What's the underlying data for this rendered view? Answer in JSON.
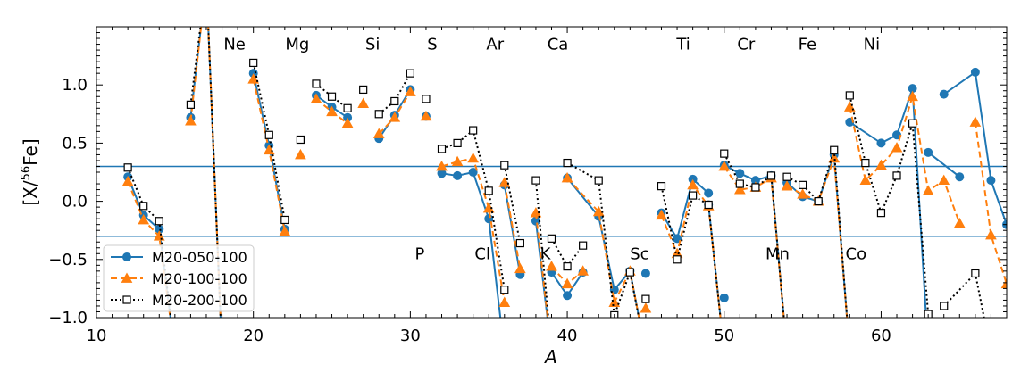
{
  "chart_data": {
    "type": "line",
    "title": "",
    "xlabel": "A",
    "ylabel": "[X/⁵⁶Fe]",
    "ylabel_main": "[X/",
    "ylabel_sup": "56",
    "ylabel_tail": "Fe]",
    "xlim": [
      10,
      68
    ],
    "ylim": [
      -1.0,
      1.5
    ],
    "xticks": [
      10,
      20,
      30,
      40,
      50,
      60
    ],
    "yticks": [
      -1.0,
      -0.5,
      0.0,
      0.5,
      1.0
    ],
    "ytick_labels": [
      "−1.0",
      "−0.5",
      "0.0",
      "0.5",
      "1.0"
    ],
    "hlines": [
      0.3,
      -0.3
    ],
    "hline_color": "#1f77b4",
    "legend_position": "lower-left",
    "element_labels": [
      {
        "text": "Ne",
        "x": 18.8,
        "y": 1.35
      },
      {
        "text": "Mg",
        "x": 22.8,
        "y": 1.35
      },
      {
        "text": "Si",
        "x": 27.6,
        "y": 1.35
      },
      {
        "text": "S",
        "x": 31.4,
        "y": 1.35
      },
      {
        "text": "Ar",
        "x": 35.4,
        "y": 1.35
      },
      {
        "text": "Ca",
        "x": 39.4,
        "y": 1.35
      },
      {
        "text": "Ti",
        "x": 47.4,
        "y": 1.35
      },
      {
        "text": "Cr",
        "x": 51.4,
        "y": 1.35
      },
      {
        "text": "Fe",
        "x": 55.3,
        "y": 1.35
      },
      {
        "text": "Ni",
        "x": 59.4,
        "y": 1.35
      },
      {
        "text": "P",
        "x": 30.6,
        "y": -0.45
      },
      {
        "text": "Cl",
        "x": 34.6,
        "y": -0.45
      },
      {
        "text": "K",
        "x": 38.6,
        "y": -0.45
      },
      {
        "text": "Sc",
        "x": 44.6,
        "y": -0.45
      },
      {
        "text": "Mn",
        "x": 53.4,
        "y": -0.45
      },
      {
        "text": "Co",
        "x": 58.4,
        "y": -0.45
      }
    ],
    "series": [
      {
        "name": "M20-050-100",
        "color": "#1f77b4",
        "marker": "circle",
        "dash": "solid",
        "segments": [
          [
            [
              12,
              0.21
            ],
            [
              13,
              -0.12
            ],
            [
              14,
              -0.24
            ],
            [
              15,
              -1.3
            ]
          ],
          [
            [
              16,
              0.72
            ],
            [
              17,
              1.9
            ],
            [
              18,
              -1.3
            ]
          ],
          [
            [
              20,
              1.1
            ],
            [
              21,
              0.48
            ],
            [
              22,
              -0.24
            ]
          ],
          [
            [
              24,
              0.91
            ],
            [
              25,
              0.81
            ],
            [
              26,
              0.72
            ]
          ],
          [
            [
              28,
              0.54
            ],
            [
              29,
              0.74
            ],
            [
              30,
              0.96
            ]
          ],
          [
            [
              31,
              0.73
            ]
          ],
          [
            [
              32,
              0.24
            ],
            [
              33,
              0.22
            ],
            [
              34,
              0.25
            ],
            [
              35,
              -0.15
            ],
            [
              36,
              -1.3
            ]
          ],
          [
            [
              36,
              0.14
            ],
            [
              37,
              -0.63
            ]
          ],
          [
            [
              38,
              -0.17
            ],
            [
              39,
              -1.3
            ]
          ],
          [
            [
              39,
              -0.61
            ],
            [
              40,
              -0.81
            ],
            [
              41,
              -0.61
            ]
          ],
          [
            [
              40,
              0.2
            ],
            [
              42,
              -0.13
            ],
            [
              43,
              -0.76
            ],
            [
              44,
              -0.6
            ],
            [
              45,
              -1.3
            ]
          ],
          [
            [
              45,
              -0.62
            ]
          ],
          [
            [
              46,
              -0.1
            ],
            [
              47,
              -0.32
            ],
            [
              48,
              0.19
            ],
            [
              49,
              0.07
            ]
          ],
          [
            [
              49,
              -0.03
            ],
            [
              50,
              -1.3
            ]
          ],
          [
            [
              50,
              -0.83
            ]
          ],
          [
            [
              50,
              0.31
            ],
            [
              51,
              0.24
            ],
            [
              52,
              0.18
            ],
            [
              53,
              0.22
            ],
            [
              54,
              -1.3
            ]
          ],
          [
            [
              54,
              0.16
            ],
            [
              55,
              0.04
            ],
            [
              56,
              0.0
            ],
            [
              57,
              0.4
            ],
            [
              58,
              -1.3
            ]
          ],
          [
            [
              58,
              0.68
            ],
            [
              60,
              0.5
            ],
            [
              61,
              0.57
            ],
            [
              62,
              0.97
            ],
            [
              63,
              -1.3
            ]
          ],
          [
            [
              63,
              0.42
            ],
            [
              65,
              0.21
            ]
          ],
          [
            [
              64,
              0.92
            ],
            [
              66,
              1.11
            ],
            [
              67,
              0.18
            ],
            [
              68,
              -0.2
            ]
          ]
        ]
      },
      {
        "name": "M20-100-100",
        "color": "#ff7f0e",
        "marker": "triangle",
        "dash": "dashed",
        "segments": [
          [
            [
              12,
              0.17
            ],
            [
              13,
              -0.16
            ],
            [
              14,
              -0.3
            ],
            [
              15,
              -1.3
            ]
          ],
          [
            [
              16,
              0.69
            ],
            [
              17,
              1.9
            ],
            [
              18,
              -1.3
            ]
          ],
          [
            [
              20,
              1.05
            ],
            [
              21,
              0.44
            ],
            [
              22,
              -0.26
            ]
          ],
          [
            [
              23,
              0.4
            ]
          ],
          [
            [
              24,
              0.88
            ],
            [
              25,
              0.77
            ],
            [
              26,
              0.67
            ]
          ],
          [
            [
              27,
              0.84
            ]
          ],
          [
            [
              28,
              0.58
            ],
            [
              29,
              0.72
            ],
            [
              30,
              0.94
            ]
          ],
          [
            [
              31,
              0.73
            ]
          ],
          [
            [
              32,
              0.3
            ],
            [
              33,
              0.34
            ],
            [
              34,
              0.37
            ],
            [
              35,
              -0.06
            ],
            [
              36,
              -0.87
            ]
          ],
          [
            [
              36,
              0.16
            ],
            [
              37,
              -0.58
            ]
          ],
          [
            [
              38,
              -0.1
            ],
            [
              39,
              -1.3
            ]
          ],
          [
            [
              39,
              -0.56
            ],
            [
              40,
              -0.71
            ],
            [
              41,
              -0.6
            ]
          ],
          [
            [
              40,
              0.2
            ],
            [
              42,
              -0.09
            ],
            [
              43,
              -0.87
            ],
            [
              44,
              -0.6
            ],
            [
              45,
              -1.3
            ]
          ],
          [
            [
              45,
              -0.92
            ]
          ],
          [
            [
              46,
              -0.12
            ],
            [
              47,
              -0.45
            ],
            [
              48,
              0.14
            ],
            [
              49,
              -0.04
            ],
            [
              50,
              -1.3
            ]
          ],
          [
            [
              50,
              0.3
            ],
            [
              51,
              0.1
            ],
            [
              52,
              0.12
            ],
            [
              53,
              0.2
            ],
            [
              54,
              -1.3
            ]
          ],
          [
            [
              54,
              0.13
            ],
            [
              55,
              0.06
            ],
            [
              56,
              0.0
            ],
            [
              57,
              0.37
            ],
            [
              58,
              -1.3
            ]
          ],
          [
            [
              58,
              0.81
            ],
            [
              59,
              0.18
            ],
            [
              60,
              0.31
            ],
            [
              61,
              0.46
            ],
            [
              62,
              0.9
            ],
            [
              63,
              0.09
            ],
            [
              64,
              0.18
            ],
            [
              65,
              -0.19
            ]
          ],
          [
            [
              66,
              0.68
            ],
            [
              67,
              -0.29
            ],
            [
              68,
              -0.71
            ]
          ]
        ]
      },
      {
        "name": "M20-200-100",
        "color": "#000000",
        "marker": "square",
        "dash": "dotted",
        "segments": [
          [
            [
              12,
              0.29
            ],
            [
              13,
              -0.04
            ],
            [
              14,
              -0.17
            ],
            [
              15,
              -1.3
            ]
          ],
          [
            [
              16,
              0.83
            ],
            [
              17,
              1.9
            ],
            [
              18,
              -1.3
            ]
          ],
          [
            [
              20,
              1.19
            ],
            [
              21,
              0.57
            ],
            [
              22,
              -0.16
            ]
          ],
          [
            [
              23,
              0.53
            ]
          ],
          [
            [
              24,
              1.01
            ],
            [
              25,
              0.9
            ],
            [
              26,
              0.8
            ]
          ],
          [
            [
              27,
              0.96
            ]
          ],
          [
            [
              28,
              0.75
            ],
            [
              29,
              0.86
            ],
            [
              30,
              1.1
            ]
          ],
          [
            [
              31,
              0.88
            ]
          ],
          [
            [
              32,
              0.45
            ],
            [
              33,
              0.5
            ],
            [
              34,
              0.61
            ],
            [
              35,
              0.09
            ],
            [
              36,
              -0.76
            ]
          ],
          [
            [
              36,
              0.31
            ],
            [
              37,
              -0.36
            ]
          ],
          [
            [
              38,
              0.18
            ],
            [
              39,
              -1.3
            ]
          ],
          [
            [
              39,
              -0.32
            ],
            [
              40,
              -0.56
            ],
            [
              41,
              -0.38
            ]
          ],
          [
            [
              40,
              0.33
            ],
            [
              42,
              0.18
            ],
            [
              43,
              -0.98
            ],
            [
              44,
              -0.61
            ],
            [
              45,
              -1.3
            ]
          ],
          [
            [
              45,
              -0.84
            ]
          ],
          [
            [
              46,
              0.13
            ],
            [
              47,
              -0.5
            ],
            [
              48,
              0.05
            ],
            [
              49,
              -0.03
            ],
            [
              50,
              -1.3
            ]
          ],
          [
            [
              50,
              0.41
            ],
            [
              51,
              0.15
            ],
            [
              52,
              0.12
            ],
            [
              53,
              0.22
            ],
            [
              54,
              -1.3
            ]
          ],
          [
            [
              54,
              0.21
            ],
            [
              55,
              0.14
            ],
            [
              56,
              0.0
            ],
            [
              57,
              0.44
            ],
            [
              58,
              -1.3
            ]
          ],
          [
            [
              58,
              0.91
            ],
            [
              59,
              0.33
            ],
            [
              60,
              -0.1
            ],
            [
              61,
              0.22
            ],
            [
              62,
              0.67
            ],
            [
              63,
              -0.97
            ]
          ],
          [
            [
              64,
              -0.9
            ],
            [
              66,
              -0.62
            ],
            [
              67,
              -1.3
            ]
          ]
        ]
      }
    ]
  }
}
